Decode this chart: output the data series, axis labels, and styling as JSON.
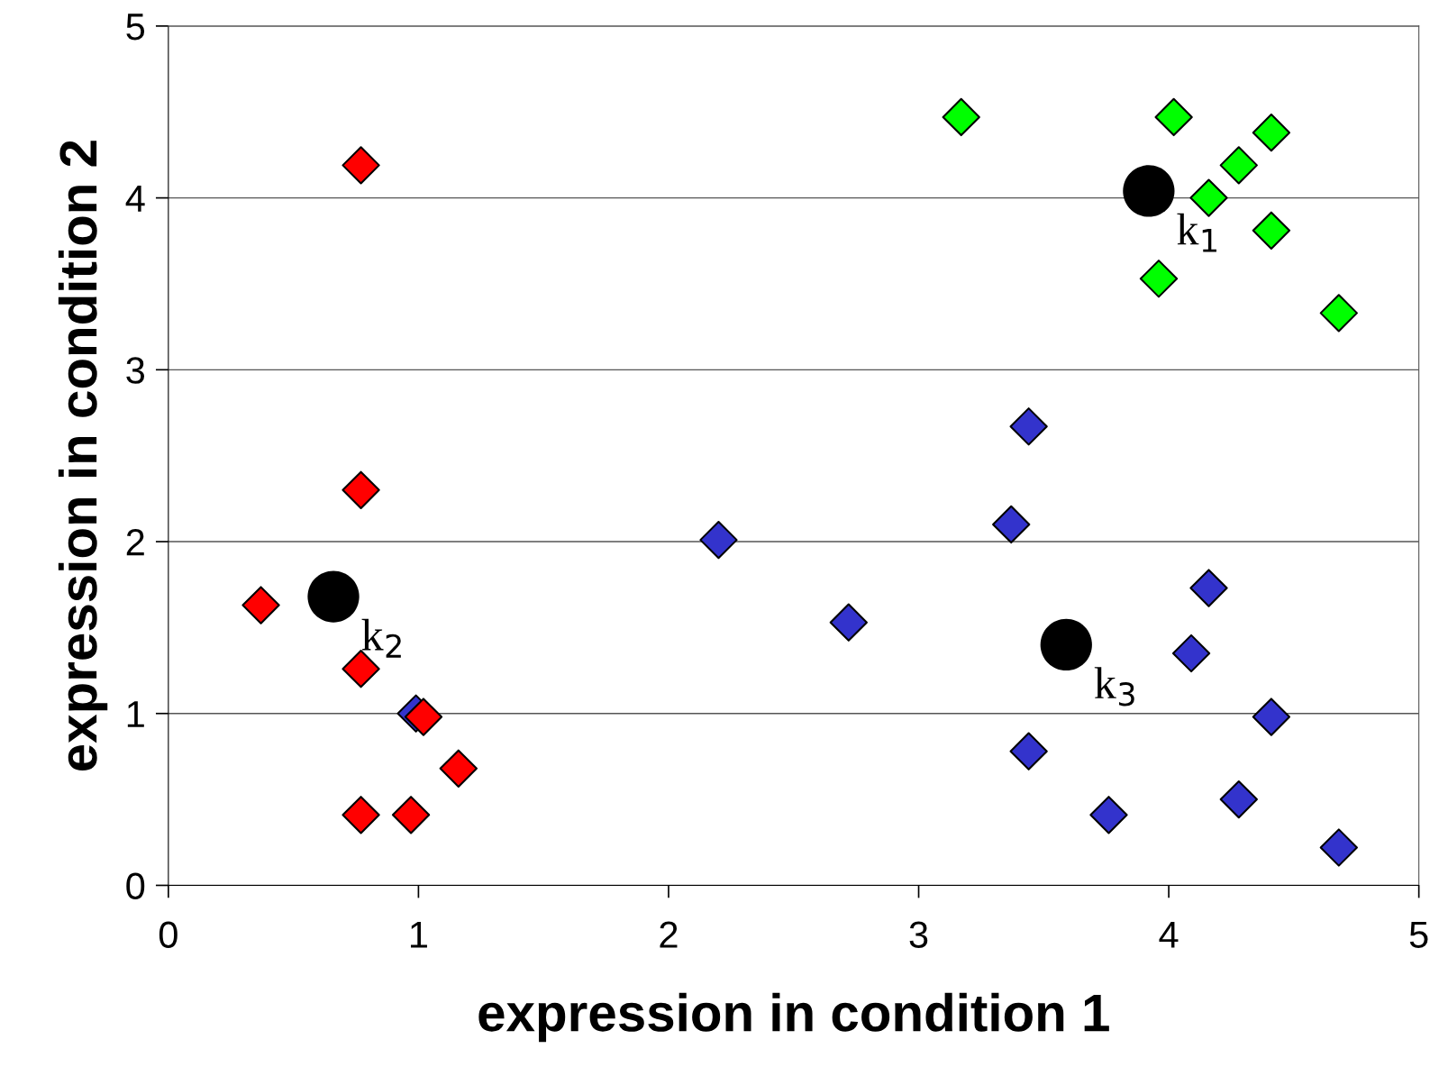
{
  "chart_data": {
    "type": "scatter",
    "xlabel": "expression in condition 1",
    "ylabel": "expression in condition 2",
    "xlim": [
      0,
      5
    ],
    "ylim": [
      0,
      5
    ],
    "xticks": [
      0,
      1,
      2,
      3,
      4,
      5
    ],
    "yticks": [
      0,
      1,
      2,
      3,
      4,
      5
    ],
    "grid": "y",
    "marker": "diamond",
    "series": [
      {
        "color": "#3333cc",
        "x": [
          0.99,
          2.2,
          2.72,
          3.44,
          3.37,
          3.44,
          3.76,
          4.16,
          4.09,
          4.41,
          4.28,
          4.68
        ],
        "values": [
          1.0,
          2.01,
          1.53,
          2.67,
          2.1,
          0.78,
          0.41,
          1.73,
          1.35,
          0.98,
          0.5,
          0.22
        ]
      },
      {
        "color": "#ff0000",
        "x": [
          0.37,
          0.77,
          0.77,
          0.77,
          1.02,
          1.16,
          0.77,
          0.97
        ],
        "values": [
          1.63,
          4.19,
          2.3,
          1.26,
          0.98,
          0.68,
          0.41,
          0.41
        ]
      },
      {
        "color": "#00ff00",
        "x": [
          3.17,
          4.02,
          4.41,
          4.28,
          4.16,
          4.41,
          3.96,
          4.68
        ],
        "values": [
          4.47,
          4.47,
          4.38,
          4.19,
          4.0,
          3.81,
          3.53,
          3.33
        ]
      },
      {
        "color": "#000000",
        "marker": "circle",
        "x": [
          3.92,
          0.66,
          3.59
        ],
        "values": [
          4.04,
          1.68,
          1.4
        ]
      }
    ],
    "annotations": [
      {
        "text": "k$_{1}$",
        "x": 3.92,
        "y": 4.04
      },
      {
        "text": "k$_{2}$",
        "x": 0.66,
        "y": 1.68
      },
      {
        "text": "k$_{3}$",
        "x": 3.59,
        "y": 1.4
      }
    ]
  }
}
